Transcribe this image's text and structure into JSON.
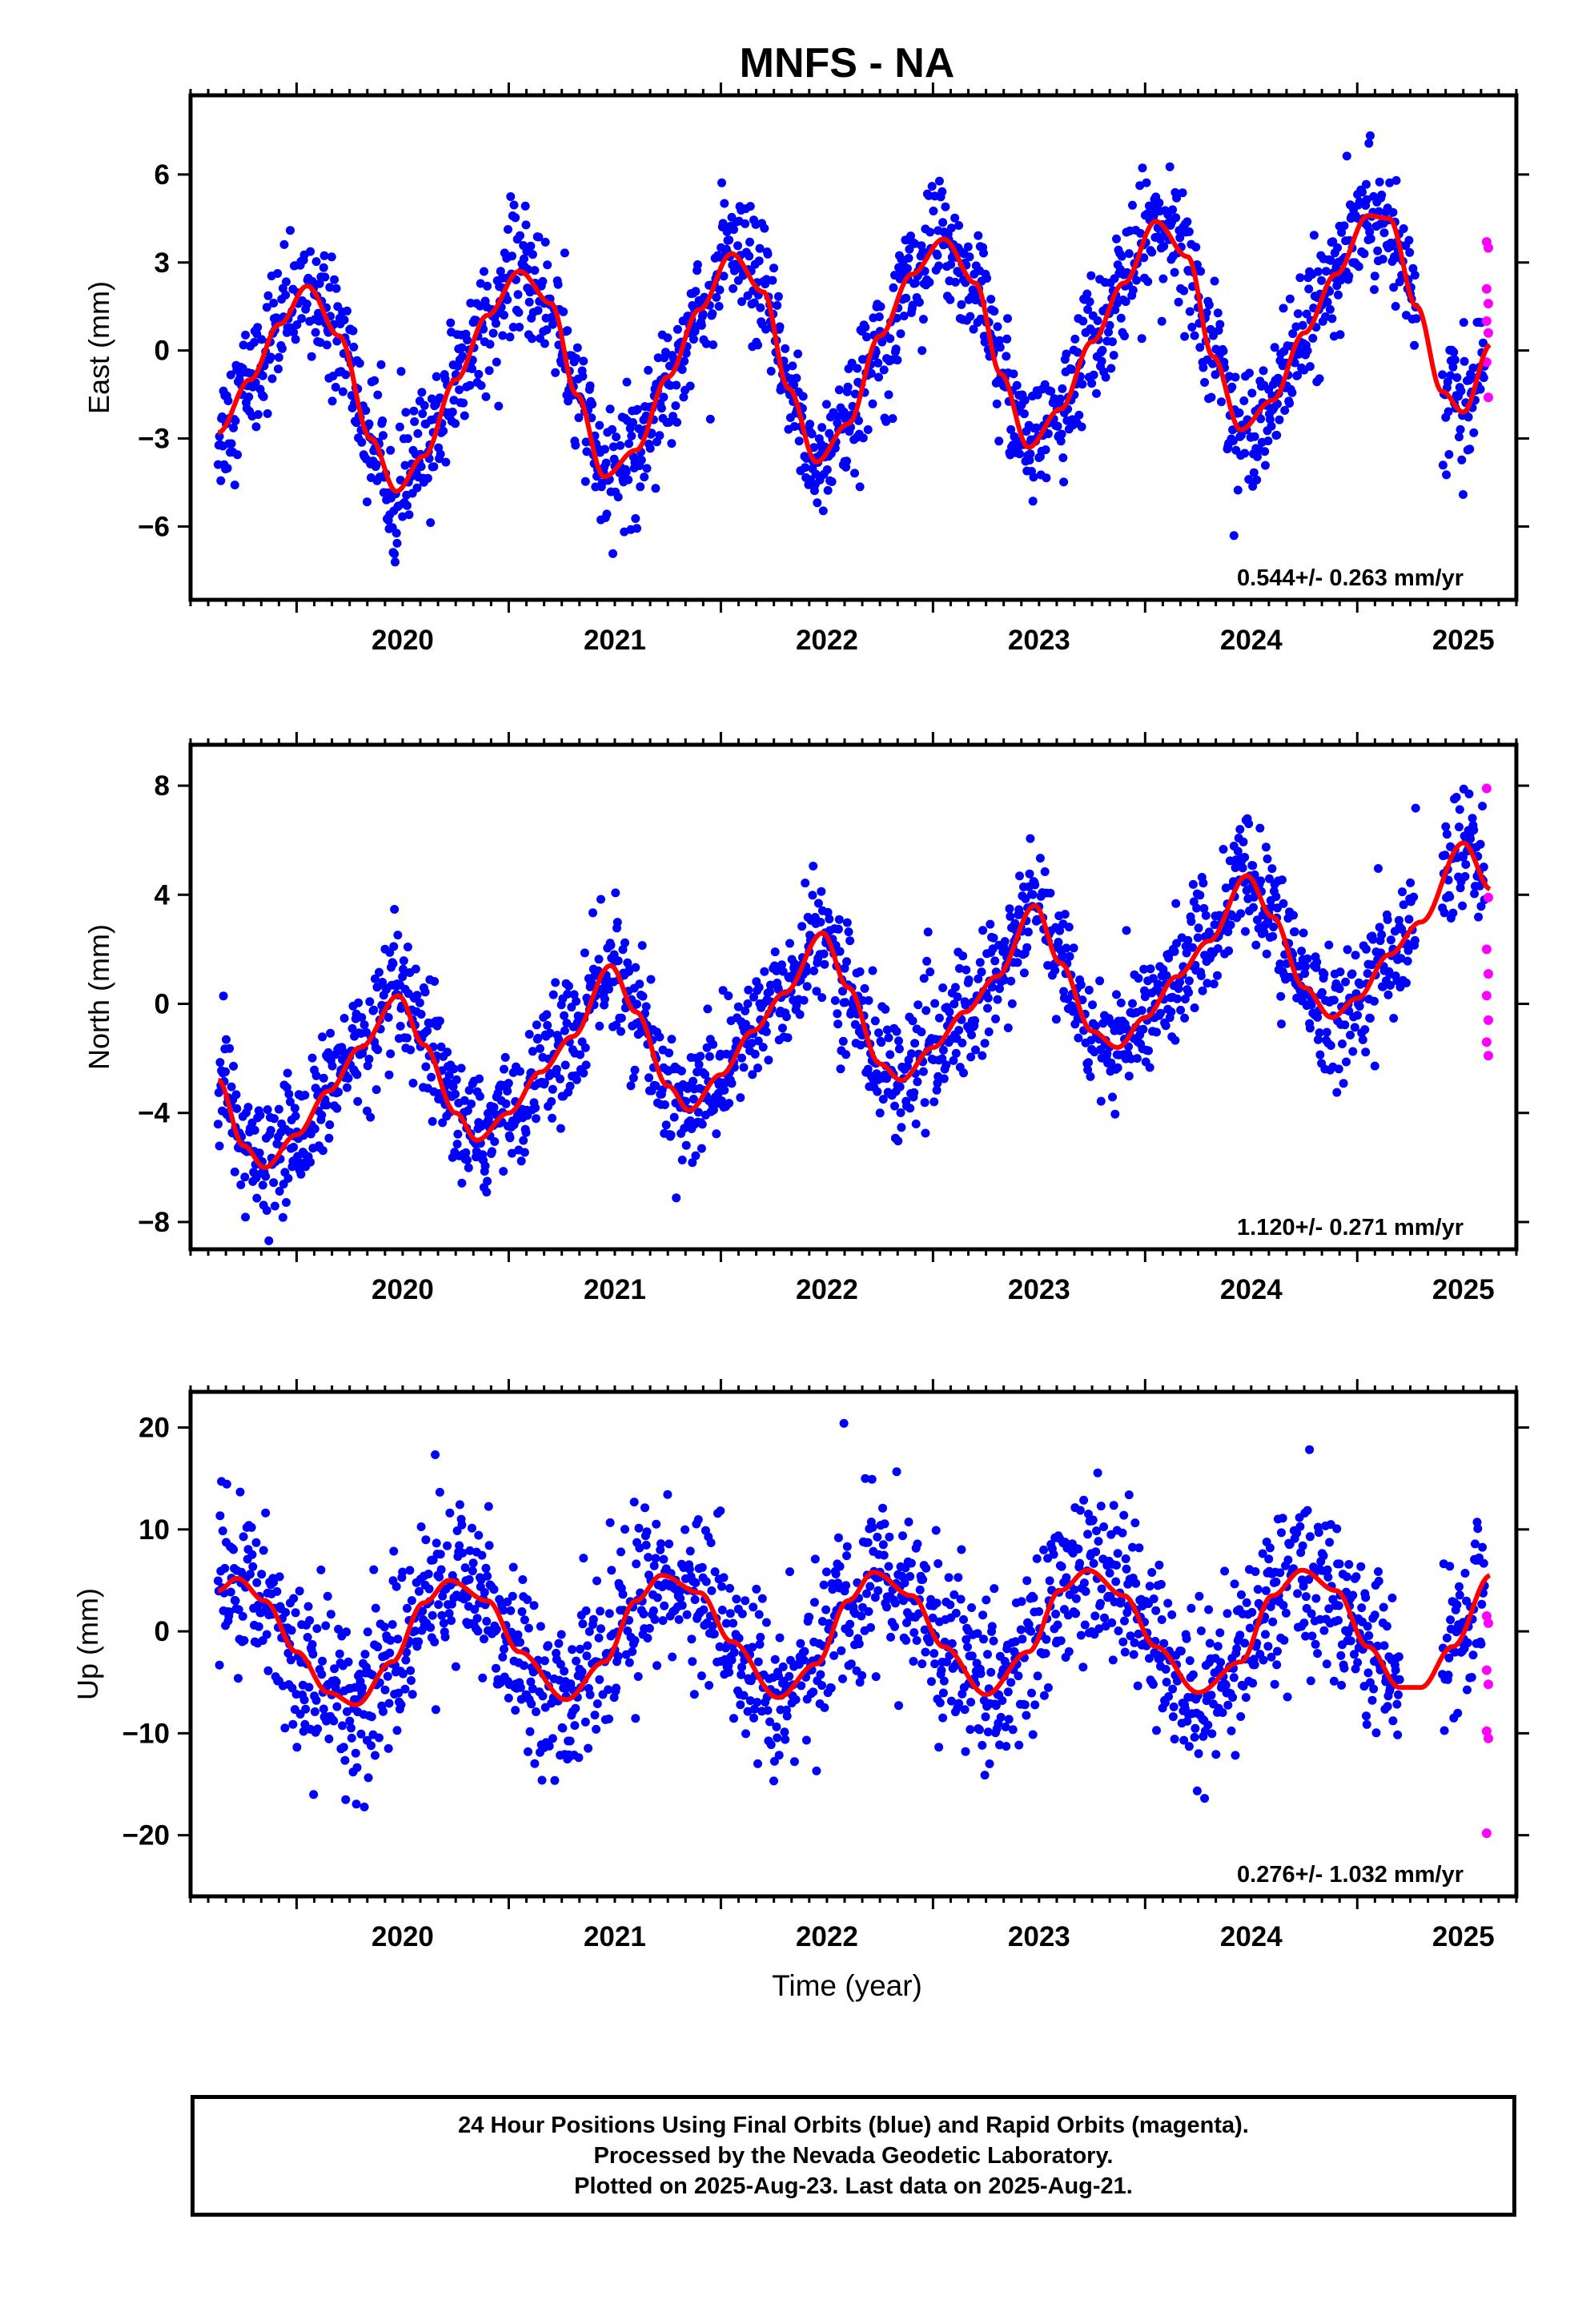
{
  "title": "MNFS - NA",
  "xlabel": "Time (year)",
  "caption": [
    "24 Hour Positions Using Final Orbits (blue) and Rapid Orbits (magenta).",
    "Processed by the Nevada Geodetic Laboratory.",
    "Plotted on 2025-Aug-23. Last data on 2025-Aug-21."
  ],
  "colors": {
    "final": "#0000ff",
    "rapid": "#ff00ff",
    "model": "#ff0000",
    "frame": "#000000"
  },
  "chart_data": [
    {
      "type": "scatter",
      "ylabel": "East (mm)",
      "rate_label": "0.544+/- 0.263 mm/yr",
      "xlim": [
        2019.5,
        2025.75
      ],
      "ylim": [
        -8.5,
        8.7
      ],
      "xticks": [
        2020,
        2021,
        2022,
        2023,
        2024,
        2025
      ],
      "yticks": [
        -6,
        -3,
        0,
        3,
        6
      ],
      "data_start": 2019.63,
      "data_end": 2025.63,
      "rapid_start": 2025.6,
      "gap": [
        2025.28,
        2025.4
      ],
      "model": {
        "x": [
          2019.63,
          2019.78,
          2019.92,
          2020.05,
          2020.2,
          2020.35,
          2020.47,
          2020.6,
          2020.75,
          2020.9,
          2021.05,
          2021.2,
          2021.32,
          2021.45,
          2021.6,
          2021.75,
          2021.9,
          2022.05,
          2022.2,
          2022.32,
          2022.45,
          2022.6,
          2022.75,
          2022.9,
          2023.05,
          2023.2,
          2023.32,
          2023.45,
          2023.6,
          2023.75,
          2023.9,
          2024.05,
          2024.2,
          2024.32,
          2024.45,
          2024.6,
          2024.75,
          2024.9,
          2025.05,
          2025.15,
          2025.28,
          2025.4,
          2025.5,
          2025.63
        ],
        "y": [
          -2.8,
          -1.0,
          0.9,
          2.2,
          0.5,
          -3.0,
          -4.8,
          -3.6,
          -1.0,
          1.2,
          2.7,
          1.6,
          -1.5,
          -4.3,
          -3.4,
          -0.9,
          1.4,
          3.3,
          2.0,
          -1.3,
          -3.8,
          -2.5,
          0.5,
          2.6,
          3.8,
          2.3,
          -0.8,
          -3.3,
          -2.0,
          0.3,
          2.3,
          4.4,
          3.2,
          -0.2,
          -2.7,
          -1.7,
          0.6,
          2.6,
          4.6,
          4.5,
          1.5,
          -1.4,
          -2.1,
          0.2
        ]
      },
      "scatter_amp": 1.4,
      "rapid_values": [
        3.7,
        3.5,
        2.1,
        1.6,
        1.0,
        0.6,
        -0.4,
        -1.6
      ]
    },
    {
      "type": "scatter",
      "ylabel": "North (mm)",
      "rate_label": "1.120+/- 0.271 mm/yr",
      "xlim": [
        2019.5,
        2025.75
      ],
      "ylim": [
        -9.0,
        9.5
      ],
      "xticks": [
        2020,
        2021,
        2022,
        2023,
        2024,
        2025
      ],
      "yticks": [
        -8,
        -4,
        0,
        4,
        8
      ],
      "data_start": 2019.63,
      "data_end": 2025.63,
      "rapid_start": 2025.6,
      "gap": [
        2025.28,
        2025.4
      ],
      "model": {
        "x": [
          2019.63,
          2019.75,
          2019.85,
          2020.0,
          2020.15,
          2020.3,
          2020.48,
          2020.6,
          2020.75,
          2020.85,
          2021.0,
          2021.15,
          2021.3,
          2021.48,
          2021.6,
          2021.75,
          2021.85,
          2022.0,
          2022.15,
          2022.3,
          2022.48,
          2022.6,
          2022.75,
          2022.85,
          2023.0,
          2023.15,
          2023.3,
          2023.48,
          2023.6,
          2023.75,
          2023.87,
          2024.0,
          2024.15,
          2024.3,
          2024.48,
          2024.6,
          2024.75,
          2024.88,
          2025.0,
          2025.15,
          2025.3,
          2025.5,
          2025.63
        ],
        "y": [
          -2.8,
          -5.2,
          -6.0,
          -4.8,
          -3.2,
          -1.6,
          0.3,
          -1.5,
          -4.0,
          -5.0,
          -4.0,
          -2.5,
          -1.2,
          1.4,
          -0.3,
          -3.0,
          -3.9,
          -2.6,
          -1.0,
          0.4,
          2.6,
          0.6,
          -2.2,
          -2.8,
          -1.6,
          -0.3,
          1.0,
          3.6,
          1.5,
          -1.0,
          -1.6,
          -0.5,
          1.0,
          2.3,
          4.7,
          3.2,
          0.6,
          -0.5,
          0.2,
          1.8,
          3.0,
          5.9,
          4.2
        ]
      },
      "scatter_amp": 1.5,
      "rapid_values": [
        7.9,
        3.9,
        2.0,
        1.1,
        0.3,
        -0.6,
        -1.4,
        -1.9
      ]
    },
    {
      "type": "scatter",
      "ylabel": "Up (mm)",
      "rate_label": "0.276+/- 1.032 mm/yr",
      "xlim": [
        2019.5,
        2025.75
      ],
      "ylim": [
        -26.0,
        23.5
      ],
      "xticks": [
        2020,
        2021,
        2022,
        2023,
        2024,
        2025
      ],
      "yticks": [
        -20,
        -10,
        0,
        10,
        20
      ],
      "data_start": 2019.63,
      "data_end": 2025.63,
      "rapid_start": 2025.6,
      "gap": [
        2025.2,
        2025.4
      ],
      "model": {
        "x": [
          2019.63,
          2019.72,
          2019.85,
          2020.0,
          2020.15,
          2020.28,
          2020.45,
          2020.6,
          2020.72,
          2020.9,
          2021.05,
          2021.27,
          2021.45,
          2021.6,
          2021.72,
          2021.9,
          2022.05,
          2022.27,
          2022.45,
          2022.6,
          2022.72,
          2022.9,
          2023.05,
          2023.25,
          2023.45,
          2023.6,
          2023.73,
          2023.9,
          2024.05,
          2024.25,
          2024.45,
          2024.6,
          2024.74,
          2024.9,
          2025.05,
          2025.2,
          2025.3,
          2025.45,
          2025.63
        ],
        "y": [
          4.0,
          5.2,
          3.0,
          -2.0,
          -6.0,
          -7.2,
          -3.0,
          2.8,
          5.0,
          3.0,
          -2.0,
          -6.7,
          -3.0,
          3.0,
          5.5,
          3.8,
          -1.0,
          -6.5,
          -3.2,
          3.0,
          5.8,
          3.5,
          -1.5,
          -6.2,
          -2.0,
          4.0,
          6.0,
          3.5,
          -1.5,
          -6.0,
          -3.0,
          3.5,
          6.0,
          4.0,
          -1.5,
          -5.5,
          -5.5,
          -1.5,
          5.5
        ]
      },
      "scatter_amp": 5.5,
      "rapid_values": [
        1.5,
        0.8,
        -3.8,
        -5.2,
        -9.8,
        -10.5,
        -19.8
      ]
    }
  ]
}
